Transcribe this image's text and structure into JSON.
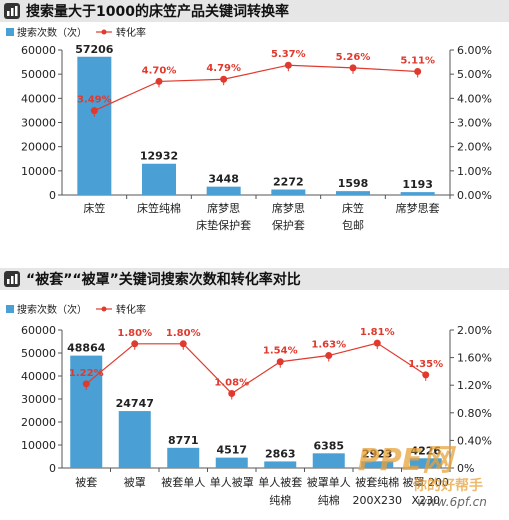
{
  "chart_data": [
    {
      "type": "bar",
      "title": "搜索量大于1000的床笠产品关键词转换率",
      "legend": [
        {
          "label": "搜索次数（次）",
          "color": "#4a9fd4"
        },
        {
          "label": "转化率",
          "color": "#e03a2e"
        }
      ],
      "categories": [
        [
          "床笠"
        ],
        [
          "床笠纯棉"
        ],
        [
          "席梦思",
          "床垫保护套"
        ],
        [
          "席梦思",
          "保护套"
        ],
        [
          "床笠",
          "包邮"
        ],
        [
          "席梦思套"
        ]
      ],
      "series": [
        {
          "name": "搜索次数（次）",
          "axis": "left",
          "values": [
            57206,
            12932,
            3448,
            2272,
            1598,
            1193
          ]
        },
        {
          "name": "转化率",
          "axis": "right",
          "values": [
            3.49,
            4.7,
            4.79,
            5.37,
            5.26,
            5.11
          ]
        }
      ],
      "value_labels": [
        "57206",
        "12932",
        "3448",
        "2272",
        "1598",
        "1193"
      ],
      "rate_labels": [
        "3.49%",
        "4.70%",
        "4.79%",
        "5.37%",
        "5.26%",
        "5.11%"
      ],
      "ylim": [
        0,
        60000
      ],
      "yticks": [
        "0",
        "10000",
        "20000",
        "30000",
        "40000",
        "50000",
        "60000"
      ],
      "y2lim": [
        0,
        6
      ],
      "y2ticks": [
        "0.00%",
        "1.00%",
        "2.00%",
        "3.00%",
        "4.00%",
        "5.00%",
        "6.00%"
      ]
    },
    {
      "type": "bar",
      "title": "“被套”“被罩”关键词搜索次数和转化率对比",
      "legend": [
        {
          "label": "搜索次数（次）",
          "color": "#4a9fd4"
        },
        {
          "label": "转化率",
          "color": "#e03a2e"
        }
      ],
      "categories": [
        [
          "被套"
        ],
        [
          "被罩"
        ],
        [
          "被套单人"
        ],
        [
          "单人被罩"
        ],
        [
          "单人被套",
          "纯棉"
        ],
        [
          "被罩单人",
          "纯棉"
        ],
        [
          "被套纯棉",
          "200X230"
        ],
        [
          "被罩 200",
          "X230"
        ]
      ],
      "series": [
        {
          "name": "搜索次数（次）",
          "axis": "left",
          "values": [
            48864,
            24747,
            8771,
            4517,
            2863,
            6385,
            2923,
            4226
          ]
        },
        {
          "name": "转化率",
          "axis": "right",
          "values": [
            1.22,
            1.8,
            1.8,
            1.08,
            1.54,
            1.63,
            1.81,
            1.35
          ]
        }
      ],
      "value_labels": [
        "48864",
        "24747",
        "8771",
        "4517",
        "2863",
        "6385",
        "2923",
        "4226"
      ],
      "rate_labels": [
        "1.22%",
        "1.80%",
        "1.80%",
        "1.08%",
        "1.54%",
        "1.63%",
        "1.81%",
        "1.35%"
      ],
      "ylim": [
        0,
        60000
      ],
      "yticks": [
        "0",
        "10000",
        "20000",
        "30000",
        "40000",
        "50000",
        "60000"
      ],
      "y2lim": [
        0,
        2
      ],
      "y2ticks": [
        "0%",
        "0.40%",
        "0.80%",
        "1.20%",
        "1.60%",
        "2.00%"
      ]
    }
  ],
  "watermark": {
    "logo": "PPE网",
    "line1": "你的好帮手",
    "url": "www.6pf.cn"
  }
}
